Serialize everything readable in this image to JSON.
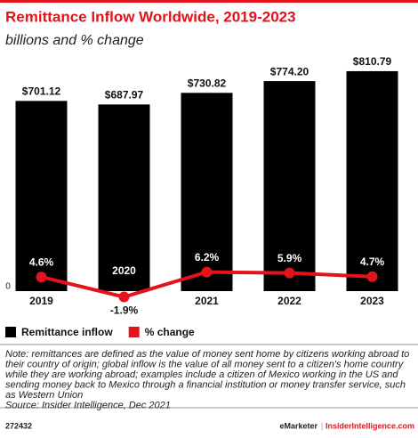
{
  "chart_data": {
    "type": "bar",
    "title": "Remittance Inflow Worldwide, 2019-2023",
    "subtitle": "billions and % change",
    "categories": [
      "2019",
      "2020",
      "2021",
      "2022",
      "2023"
    ],
    "series": [
      {
        "name": "Remittance inflow",
        "type": "bar",
        "color": "#000000",
        "values": [
          701.12,
          687.97,
          730.82,
          774.2,
          810.79
        ],
        "value_labels": [
          "$701.12",
          "$687.97",
          "$730.82",
          "$774.20",
          "$810.79"
        ]
      },
      {
        "name": "% change",
        "type": "line",
        "axis": "y2",
        "color": "#e3121b",
        "values": [
          4.6,
          -1.9,
          6.2,
          5.9,
          4.7
        ],
        "value_labels": [
          "4.6%",
          "-1.9%",
          "6.2%",
          "5.9%",
          "4.7%"
        ]
      }
    ],
    "ylim": [
      0,
      850
    ],
    "yticks": [
      0
    ],
    "y2lim": [
      0,
      75
    ],
    "note": [
      "Note: remittances are defined as the value of money sent home by citizens working abroad to",
      "their country of origin; global inflow is the value of all money sent to a citizen's home country",
      "while they are working abroad; examples include a citizen of Mexico working in the US and",
      "sending money back to Mexico through a financial institution or money transfer service, such",
      "as Western Union"
    ],
    "source": "Source: Insider Intelligence, Dec 2021",
    "footer": {
      "id": "272432",
      "brand": "eMarketer",
      "separator": "|",
      "site": "InsiderIntelligence.com"
    }
  }
}
